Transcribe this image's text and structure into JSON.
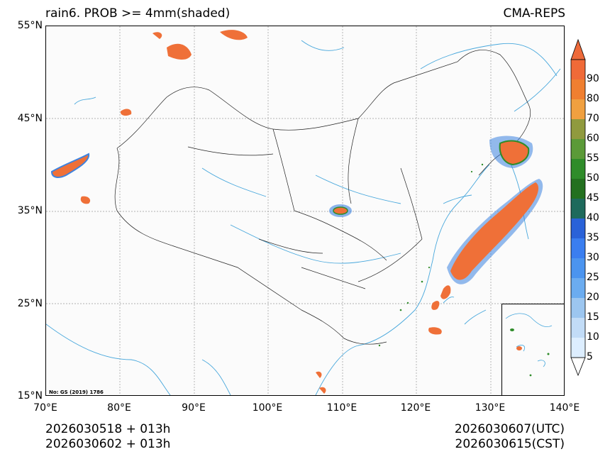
{
  "title": {
    "left": "rain6. PROB >= 4mm(shaded)",
    "right": "CMA-REPS"
  },
  "latitude_labels": [
    "55°N",
    "45°N",
    "35°N",
    "25°N",
    "15°N"
  ],
  "longitude_labels": [
    "70°E",
    "80°E",
    "90°E",
    "100°E",
    "110°E",
    "120°E",
    "130°E",
    "140°E"
  ],
  "colorbar": {
    "levels": [
      "5",
      "10",
      "15",
      "20",
      "25",
      "30",
      "35",
      "40",
      "45",
      "50",
      "55",
      "60",
      "70",
      "80",
      "90"
    ],
    "colors": [
      "#ddeeff",
      "#c2dcf7",
      "#9cc6f0",
      "#6bacf0",
      "#4b94ef",
      "#3a7ef0",
      "#2a62d8",
      "#1e6a5c",
      "#23701f",
      "#2f8c2a",
      "#5b9a38",
      "#909a3e",
      "#f0a040",
      "#f07f30",
      "#f06a38"
    ],
    "over_color": "#ee6a3a"
  },
  "map_note": "No: GS (2019) 1786",
  "footer": {
    "init_utc": "2026030518  +  013h",
    "init_cst": "2026030602  +  013h",
    "valid_utc": "2026030607(UTC)",
    "valid_cst": "2026030615(CST)"
  },
  "colors": {
    "rain_core": "#ef7038",
    "rain_edge": "#3d83e0",
    "coast": "#47a7dc",
    "border": "#222222"
  }
}
